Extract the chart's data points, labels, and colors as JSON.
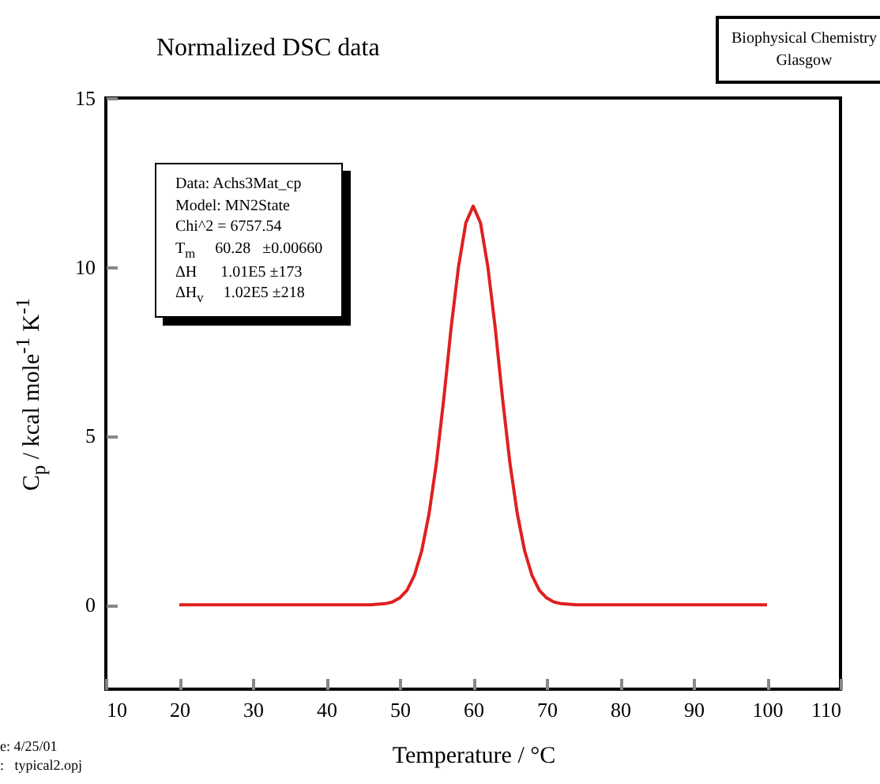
{
  "chart_data": {
    "type": "line",
    "title": "Normalized DSC data",
    "xlabel": "Temperature / °C",
    "ylabel": "C$_{p}$ / kcal mole$^{-1}$ K$^{-1}$",
    "annotations": [
      "Biophysical Chemistry\nGlasgow",
      "Data: Achs3Mat_cp\nModel: MN2State\nChi^2 = 6757.54\nT$_{m}$     60.28   ±0.00660\nΔH      1.01E5 ±173\nΔH$_{v}$     1.02E5 ±218",
      "e: 4/25/01\n:   typical2.opj"
    ],
    "x": [
      20,
      44,
      46,
      48,
      49,
      50,
      51,
      52,
      53,
      54,
      55,
      56,
      57,
      58,
      59,
      60,
      61,
      62,
      63,
      64,
      65,
      66,
      67,
      68,
      69,
      70,
      71,
      72,
      74,
      76,
      100
    ],
    "series": [
      {
        "color": "#e02020",
        "values": [
          0,
          0,
          0,
          0.03,
          0.08,
          0.2,
          0.43,
          0.87,
          1.6,
          2.7,
          4.2,
          6.1,
          8.2,
          10.0,
          11.3,
          11.8,
          11.3,
          10.0,
          8.2,
          6.1,
          4.2,
          2.7,
          1.6,
          0.87,
          0.43,
          0.2,
          0.08,
          0.03,
          0,
          0,
          0
        ]
      }
    ],
    "xlim": [
      10,
      110
    ],
    "xticks": [
      10,
      20,
      30,
      40,
      50,
      60,
      70,
      80,
      90,
      100,
      110
    ],
    "ylim": [
      -2.5,
      15
    ],
    "yticks": [
      0,
      5,
      10,
      15
    ],
    "grid": false,
    "legend": false,
    "marker": "none",
    "line_style": "solid"
  }
}
